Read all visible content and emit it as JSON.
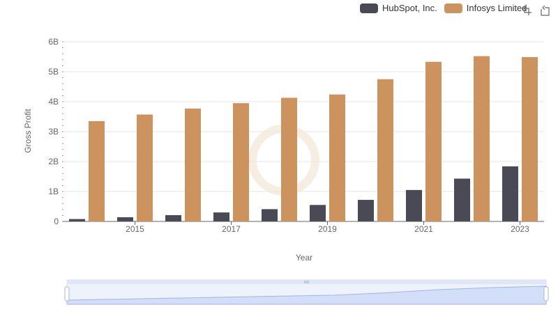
{
  "legend": [
    {
      "name": "HubSpot, Inc.",
      "color": "#4a4956"
    },
    {
      "name": "Infosys Limited",
      "color": "#cc935f"
    }
  ],
  "toolbox": {
    "icons": [
      "zoom-select-icon",
      "zoom-reset-icon"
    ]
  },
  "chart_data": {
    "type": "bar",
    "xlabel": "Year",
    "ylabel": "Gross Profit",
    "ylim": [
      0,
      6000000000
    ],
    "y_ticks": [
      "0",
      "1B",
      "2B",
      "3B",
      "4B",
      "5B",
      "6B"
    ],
    "categories": [
      "2014",
      "2015",
      "2016",
      "2017",
      "2018",
      "2019",
      "2020",
      "2021",
      "2022",
      "2023"
    ],
    "x_tick_labels": [
      "2015",
      "2017",
      "2019",
      "2021",
      "2023"
    ],
    "series": [
      {
        "name": "HubSpot, Inc.",
        "color": "#4a4956",
        "values": [
          80000000,
          140000000,
          210000000,
          300000000,
          410000000,
          550000000,
          720000000,
          1050000000,
          1430000000,
          1840000000
        ]
      },
      {
        "name": "Infosys Limited",
        "color": "#cc935f",
        "values": [
          3350000000,
          3570000000,
          3770000000,
          3950000000,
          4130000000,
          4240000000,
          4750000000,
          5330000000,
          5520000000,
          5490000000
        ]
      }
    ],
    "grid": true,
    "legend_position": "top-right",
    "data_zoom_slider": true
  }
}
